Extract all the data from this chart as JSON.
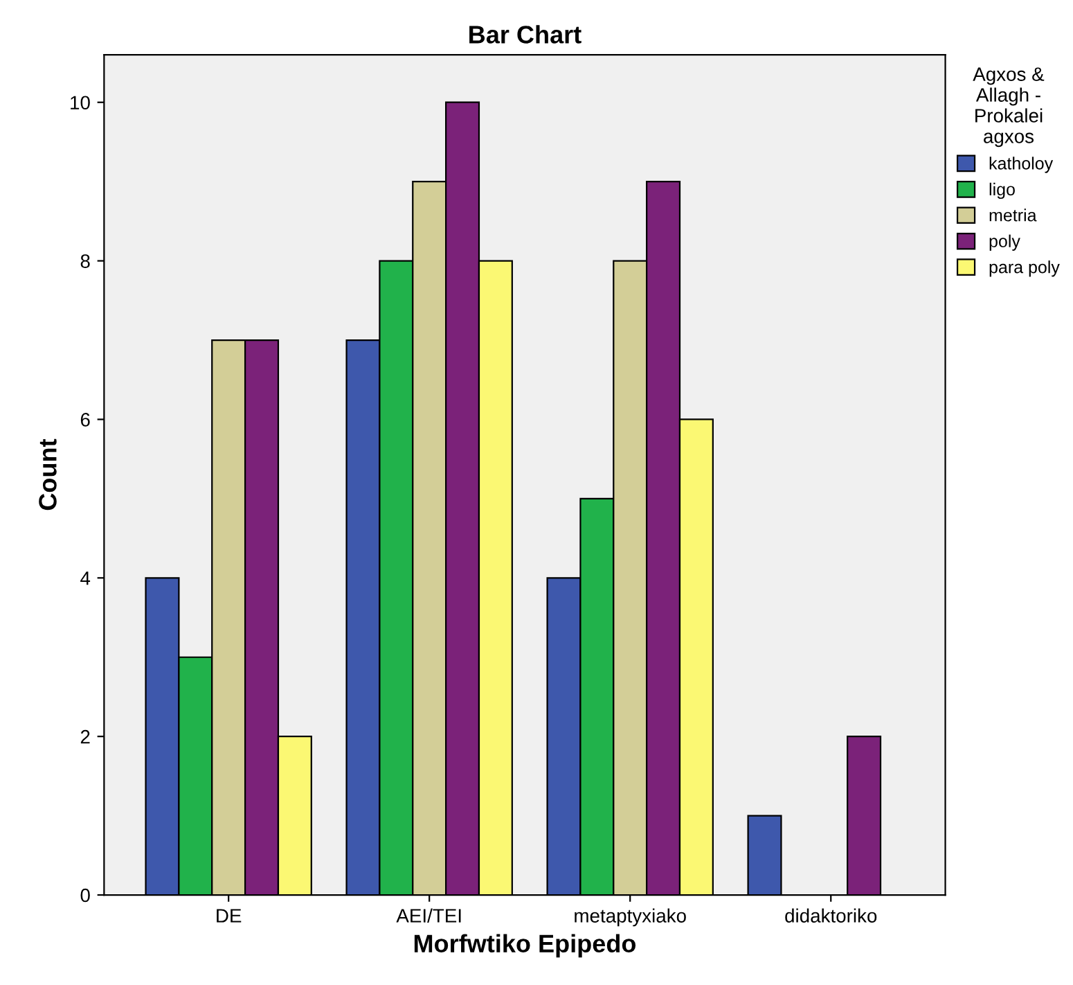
{
  "chart_data": {
    "type": "bar",
    "title": "Bar Chart",
    "xlabel": "Morfwtiko Epipedo",
    "ylabel": "Count",
    "legend_title": "Agxos &\nAllagh -\nProkalei\nagxos",
    "categories": [
      "DE",
      "AEI/TEI",
      "metaptyxiako",
      "didaktoriko"
    ],
    "series": [
      {
        "name": "katholoy",
        "color": "#3e58ac",
        "values": [
          4,
          7,
          4,
          1
        ]
      },
      {
        "name": "ligo",
        "color": "#21b24b",
        "values": [
          3,
          8,
          5,
          null
        ]
      },
      {
        "name": "metria",
        "color": "#d3ce97",
        "values": [
          7,
          9,
          8,
          null
        ]
      },
      {
        "name": "poly",
        "color": "#7b2279",
        "values": [
          7,
          10,
          9,
          2
        ]
      },
      {
        "name": "para poly",
        "color": "#fbf873",
        "values": [
          2,
          8,
          6,
          null
        ]
      }
    ],
    "ylim": [
      0,
      10.6
    ],
    "yticks": [
      0,
      2,
      4,
      6,
      8,
      10
    ],
    "grid": false,
    "legend": "top right"
  }
}
